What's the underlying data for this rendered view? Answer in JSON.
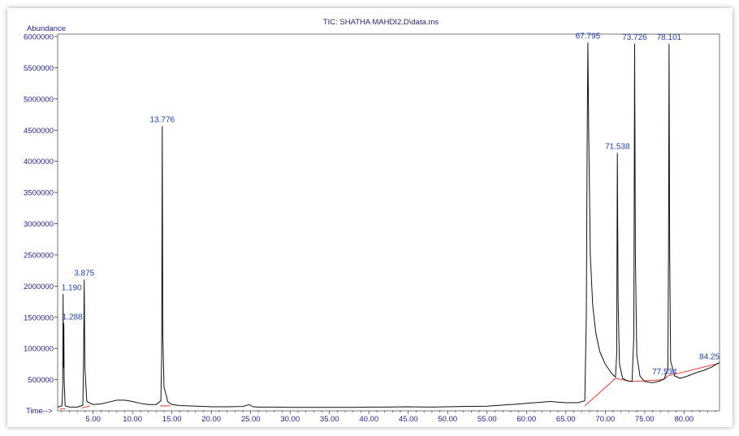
{
  "chart_data": {
    "type": "line",
    "title": "TIC: SHATHA MAHDI2.D\\data.ms",
    "ylabel": "Abundance",
    "xlabel": "Time-->",
    "xlim": [
      0.5,
      84.5
    ],
    "ylim": [
      0,
      6000000
    ],
    "yticks": [
      500000,
      1000000,
      1500000,
      2000000,
      2500000,
      3000000,
      3500000,
      4000000,
      4500000,
      5000000,
      5500000,
      6000000
    ],
    "ytick_labels": [
      "500000",
      "1000000",
      "1500000",
      "2000000",
      "2500000",
      "3000000",
      "3500000",
      "4000000",
      "4500000",
      "5000000",
      "5500000",
      "6000000"
    ],
    "xticks": [
      5,
      10,
      15,
      20,
      25,
      30,
      35,
      40,
      45,
      50,
      55,
      60,
      65,
      70,
      75,
      80
    ],
    "xtick_labels": [
      "5.00",
      "10.00",
      "15.00",
      "20.00",
      "25.00",
      "30.00",
      "35.00",
      "40.00",
      "45.00",
      "50.00",
      "55.00",
      "60.00",
      "65.00",
      "70.00",
      "75.00",
      "80.00"
    ],
    "peaks": [
      {
        "label": "1.190",
        "x": 1.19,
        "y": 1870000
      },
      {
        "label": "1.288",
        "x": 1.288,
        "y": 1400000
      },
      {
        "label": "3.875",
        "x": 3.875,
        "y": 2100000
      },
      {
        "label": "13.776",
        "x": 13.776,
        "y": 4560000
      },
      {
        "label": "67.795",
        "x": 67.795,
        "y": 5900000
      },
      {
        "label": "71.538",
        "x": 71.538,
        "y": 4130000
      },
      {
        "label": "73.726",
        "x": 73.726,
        "y": 5880000
      },
      {
        "label": "77.534",
        "x": 77.534,
        "y": 520000
      },
      {
        "label": "78.101",
        "x": 78.101,
        "y": 5880000
      },
      {
        "label": "84.25",
        "x": 84.25,
        "y": 760000
      }
    ],
    "series": [
      {
        "color": "#111111",
        "x": [
          0.5,
          1.05,
          1.15,
          1.19,
          1.23,
          1.26,
          1.288,
          1.32,
          1.45,
          2.0,
          3.0,
          3.7,
          3.8,
          3.875,
          3.95,
          4.2,
          5.0,
          6.0,
          7.0,
          8.0,
          9.0,
          10.0,
          11.0,
          12.0,
          13.0,
          13.6,
          13.7,
          13.776,
          13.85,
          14.0,
          14.5,
          15.0,
          16.0,
          18.0,
          20.0,
          22.0,
          24.0,
          24.8,
          25.3,
          26.0,
          28.0,
          30.0,
          32.0,
          35.0,
          38.0,
          40.0,
          42.0,
          45.0,
          48.0,
          50.0,
          52.0,
          55.0,
          58.0,
          60.0,
          62.0,
          63.0,
          65.0,
          66.5,
          67.4,
          67.6,
          67.7,
          67.795,
          67.9,
          68.1,
          68.4,
          68.8,
          69.3,
          70.0,
          70.8,
          71.3,
          71.45,
          71.538,
          71.63,
          71.8,
          72.2,
          72.8,
          73.4,
          73.63,
          73.726,
          73.82,
          74.0,
          74.4,
          75.0,
          76.0,
          77.0,
          77.4,
          77.534,
          77.7,
          77.95,
          78.03,
          78.101,
          78.17,
          78.3,
          78.8,
          79.5,
          80.5,
          81.5,
          82.5,
          83.5,
          84.25,
          84.5
        ],
        "y": [
          60000,
          80000,
          400000,
          1870000,
          700000,
          800000,
          1400000,
          500000,
          80000,
          60000,
          60000,
          90000,
          900000,
          2100000,
          700000,
          150000,
          100000,
          110000,
          140000,
          170000,
          170000,
          150000,
          120000,
          100000,
          100000,
          160000,
          900000,
          4560000,
          1200000,
          380000,
          140000,
          100000,
          85000,
          75000,
          65000,
          65000,
          70000,
          100000,
          65000,
          60000,
          60000,
          55000,
          55000,
          55000,
          55000,
          60000,
          60000,
          65000,
          60000,
          65000,
          70000,
          75000,
          100000,
          120000,
          140000,
          150000,
          130000,
          130000,
          160000,
          1500000,
          4200000,
          5900000,
          4500000,
          2500000,
          1700000,
          1250000,
          950000,
          750000,
          600000,
          540000,
          900000,
          4130000,
          1800000,
          750000,
          520000,
          480000,
          470000,
          1200000,
          5880000,
          2500000,
          900000,
          560000,
          470000,
          450000,
          480000,
          510000,
          520000,
          600000,
          650000,
          2500000,
          5880000,
          2600000,
          800000,
          560000,
          520000,
          560000,
          610000,
          650000,
          700000,
          760000,
          770000
        ]
      }
    ],
    "baselines": [
      {
        "x": [
          0.8,
          1.45
        ],
        "y": [
          30000,
          30000
        ]
      },
      {
        "x": [
          3.55,
          4.6
        ],
        "y": [
          45000,
          80000
        ]
      },
      {
        "x": [
          13.5,
          14.8
        ],
        "y": [
          80000,
          80000
        ]
      },
      {
        "x": [
          67.4,
          71.3
        ],
        "y": [
          80000,
          520000
        ]
      },
      {
        "x": [
          71.3,
          73.4
        ],
        "y": [
          520000,
          470000
        ]
      },
      {
        "x": [
          73.4,
          77.4
        ],
        "y": [
          470000,
          500000
        ]
      },
      {
        "x": [
          77.4,
          77.95
        ],
        "y": [
          500000,
          560000
        ]
      },
      {
        "x": [
          77.95,
          84.4
        ],
        "y": [
          560000,
          760000
        ]
      }
    ],
    "baseline_color": "#e8201a"
  }
}
